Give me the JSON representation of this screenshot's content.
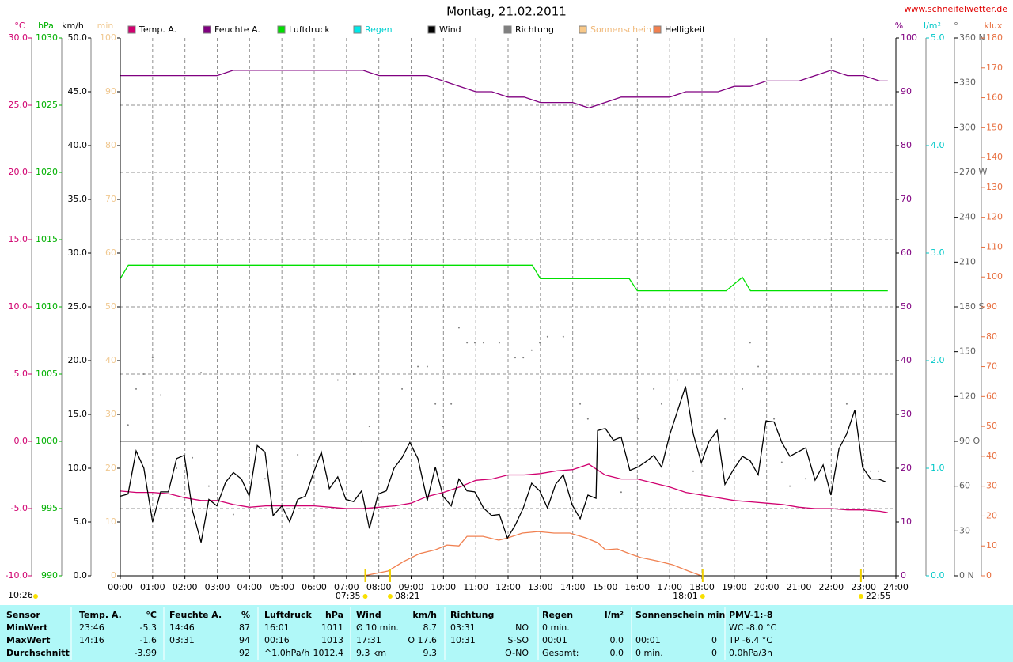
{
  "chart_data": {
    "type": "line",
    "title": "Montag, 21.02.2011",
    "source": "www.schneifelwetter.de",
    "xlim": [
      0,
      24
    ],
    "xticks": [
      {
        "value": 0,
        "label": "00:00"
      },
      {
        "value": 1,
        "label": "01:00"
      },
      {
        "value": 2,
        "label": "02:00"
      },
      {
        "value": 3,
        "label": "03:00"
      },
      {
        "value": 4,
        "label": "04:00"
      },
      {
        "value": 5,
        "label": "05:00"
      },
      {
        "value": 6,
        "label": "06:00"
      },
      {
        "value": 7,
        "label": "07:00"
      },
      {
        "value": 8,
        "label": "08:00"
      },
      {
        "value": 9,
        "label": "09:00"
      },
      {
        "value": 10,
        "label": "10:00"
      },
      {
        "value": 11,
        "label": "11:00"
      },
      {
        "value": 12,
        "label": "12:00"
      },
      {
        "value": 13,
        "label": "13:00"
      },
      {
        "value": 14,
        "label": "14:00"
      },
      {
        "value": 15,
        "label": "15:00"
      },
      {
        "value": 16,
        "label": "16:00"
      },
      {
        "value": 17,
        "label": "17:00"
      },
      {
        "value": 18,
        "label": "18:00"
      },
      {
        "value": 19,
        "label": "19:00"
      },
      {
        "value": 20,
        "label": "20:00"
      },
      {
        "value": 21,
        "label": "21:00"
      },
      {
        "value": 22,
        "label": "22:00"
      },
      {
        "value": 23,
        "label": "23:00"
      },
      {
        "value": 24,
        "label": "24:00"
      }
    ],
    "grid": true,
    "axes": [
      {
        "label": "°C",
        "color": "#d0006f",
        "lim": [
          -10,
          30
        ],
        "ticks": [
          {
            "value": 30,
            "label": "30.0"
          },
          {
            "value": 25,
            "label": "25.0"
          },
          {
            "value": 20,
            "label": "20.0"
          },
          {
            "value": 15,
            "label": "15.0"
          },
          {
            "value": 10,
            "label": "10.0"
          },
          {
            "value": 5,
            "label": "5.0"
          },
          {
            "value": 0,
            "label": "0.0"
          },
          {
            "value": -5,
            "label": "-5.0"
          },
          {
            "value": -10,
            "label": "-10.0"
          }
        ]
      },
      {
        "label": "hPa",
        "color": "#00b000",
        "lim": [
          990,
          1030
        ],
        "ticks": [
          1030,
          1025,
          1020,
          1015,
          1010,
          1005,
          1000,
          995,
          990
        ]
      },
      {
        "label": "km/h",
        "color": "#000000",
        "lim": [
          0,
          50
        ],
        "ticks": [
          {
            "value": 50,
            "label": "50.0"
          },
          {
            "value": 45,
            "label": "45.0"
          },
          {
            "value": 40,
            "label": "40.0"
          },
          {
            "value": 35,
            "label": "35.0"
          },
          {
            "value": 30,
            "label": "30.0"
          },
          {
            "value": 25,
            "label": "25.0"
          },
          {
            "value": 20,
            "label": "20.0"
          },
          {
            "value": 15,
            "label": "15.0"
          },
          {
            "value": 10,
            "label": "10.0"
          },
          {
            "value": 5,
            "label": "5.0"
          },
          {
            "value": 0,
            "label": "0.0"
          }
        ]
      },
      {
        "label": "min",
        "color": "#f0c890",
        "lim": [
          0,
          100
        ],
        "ticks": [
          100,
          90,
          80,
          70,
          60,
          50,
          40,
          30,
          20,
          10,
          0
        ]
      },
      {
        "label": "%",
        "color": "#800080",
        "lim": [
          0,
          100
        ],
        "ticks": [
          100,
          90,
          80,
          70,
          60,
          50,
          40,
          30,
          20,
          10,
          0
        ]
      },
      {
        "label": "l/m²",
        "color": "#00c8c8",
        "lim": [
          0,
          5
        ],
        "ticks": [
          {
            "value": 5,
            "label": "5.0"
          },
          {
            "value": 4,
            "label": "4.0"
          },
          {
            "value": 3,
            "label": "3.0"
          },
          {
            "value": 2,
            "label": "2.0"
          },
          {
            "value": 1,
            "label": "1.0"
          },
          {
            "value": 0,
            "label": "0.0"
          }
        ]
      },
      {
        "label": "°",
        "color": "#606060",
        "lim": [
          0,
          360
        ],
        "ticks": [
          {
            "value": 360,
            "label": "360 N"
          },
          330,
          300,
          {
            "value": 270,
            "label": "270 W"
          },
          240,
          210,
          {
            "value": 180,
            "label": "180 S"
          },
          150,
          120,
          {
            "value": 90,
            "label": "90 O"
          },
          60,
          30,
          {
            "value": 0,
            "label": "0 N"
          }
        ]
      },
      {
        "label": "klux",
        "color": "#e87040",
        "lim": [
          0,
          180
        ],
        "ticks": [
          180,
          170,
          160,
          150,
          140,
          130,
          120,
          110,
          100,
          90,
          80,
          70,
          60,
          50,
          40,
          30,
          20,
          10,
          0
        ]
      }
    ],
    "series": [
      {
        "name": "Temp. A.",
        "color": "#d0006f",
        "axis": "°C",
        "type": "line",
        "x": [
          0,
          0.5,
          1,
          1.5,
          2,
          2.5,
          3,
          3.5,
          4,
          4.5,
          5,
          5.5,
          6,
          6.5,
          7,
          7.5,
          8,
          8.5,
          9,
          9.5,
          10,
          10.5,
          11,
          11.5,
          12,
          12.5,
          13,
          13.5,
          14,
          14.5,
          15,
          15.5,
          16,
          16.5,
          17,
          17.5,
          18,
          18.5,
          19,
          19.5,
          20,
          20.5,
          21,
          21.5,
          22,
          22.5,
          23,
          23.5,
          23.75
        ],
        "values": [
          -3.7,
          -3.8,
          -3.8,
          -3.9,
          -4.2,
          -4.4,
          -4.4,
          -4.7,
          -4.9,
          -4.8,
          -4.8,
          -4.8,
          -4.8,
          -4.9,
          -5.0,
          -5.0,
          -4.9,
          -4.8,
          -4.6,
          -4.1,
          -3.8,
          -3.4,
          -2.9,
          -2.8,
          -2.5,
          -2.5,
          -2.4,
          -2.2,
          -2.1,
          -1.7,
          -2.5,
          -2.8,
          -2.8,
          -3.1,
          -3.4,
          -3.8,
          -4.0,
          -4.2,
          -4.4,
          -4.5,
          -4.6,
          -4.7,
          -4.9,
          -5.0,
          -5.0,
          -5.1,
          -5.1,
          -5.2,
          -5.3
        ]
      },
      {
        "name": "Feuchte A.",
        "color": "#800080",
        "axis": "%",
        "type": "line",
        "x": [
          0,
          0.5,
          1,
          1.5,
          2,
          2.5,
          3,
          3.5,
          4,
          4.5,
          5,
          5.5,
          6,
          6.5,
          7,
          7.5,
          8,
          8.5,
          9,
          9.5,
          10,
          10.5,
          11,
          11.5,
          12,
          12.5,
          13,
          13.5,
          14,
          14.5,
          15,
          15.5,
          16,
          16.5,
          17,
          17.5,
          18,
          18.5,
          19,
          19.5,
          20,
          20.5,
          21,
          21.5,
          22,
          22.5,
          23,
          23.5,
          23.75
        ],
        "values": [
          93,
          93,
          93,
          93,
          93,
          93,
          93,
          94,
          94,
          94,
          94,
          94,
          94,
          94,
          94,
          94,
          93,
          93,
          93,
          93,
          92,
          91,
          90,
          90,
          89,
          89,
          88,
          88,
          88,
          87,
          88,
          89,
          89,
          89,
          89,
          90,
          90,
          90,
          91,
          91,
          92,
          92,
          92,
          93,
          94,
          93,
          93,
          92,
          92
        ]
      },
      {
        "name": "Luftdruck",
        "color": "#00e000",
        "axis": "hPa",
        "type": "line",
        "x": [
          0,
          0.25,
          12.75,
          13,
          15.75,
          16,
          18.75,
          19.25,
          19.5,
          23.75
        ],
        "values": [
          1012.1,
          1013.1,
          1013.1,
          1012.1,
          1012.1,
          1011.2,
          1011.2,
          1012.2,
          1011.2,
          1011.2
        ]
      },
      {
        "name": "Regen",
        "color": "#00e8e8",
        "label_color": "#00d0d0",
        "axis": "l/m²",
        "type": "line",
        "x": [],
        "values": []
      },
      {
        "name": "Wind",
        "color": "#000000",
        "axis": "km/h",
        "type": "line",
        "x": [
          0,
          0.24,
          0.49,
          0.73,
          1.0,
          1.25,
          1.49,
          1.74,
          1.98,
          2.23,
          2.5,
          2.74,
          2.99,
          3.26,
          3.5,
          3.75,
          3.99,
          4.24,
          4.48,
          4.73,
          5.0,
          5.24,
          5.49,
          5.73,
          5.98,
          6.22,
          6.47,
          6.73,
          6.98,
          7.22,
          7.47,
          7.71,
          7.98,
          8.23,
          8.47,
          8.72,
          8.96,
          9.21,
          9.5,
          9.75,
          9.99,
          10.24,
          10.48,
          10.73,
          10.97,
          11.24,
          11.49,
          11.73,
          11.98,
          12.22,
          12.47,
          12.73,
          12.98,
          13.22,
          13.47,
          13.71,
          13.98,
          14.23,
          14.47,
          14.72,
          14.77,
          15.01,
          15.26,
          15.5,
          15.77,
          16.02,
          16.26,
          16.51,
          16.75,
          17.0,
          17.24,
          17.49,
          17.73,
          17.98,
          18.22,
          18.47,
          18.71,
          18.96,
          19.25,
          19.49,
          19.74,
          19.98,
          20.23,
          20.47,
          20.72,
          20.96,
          21.21,
          21.5,
          21.75,
          21.99,
          22.24,
          22.48,
          22.73,
          22.97,
          23.22,
          23.46,
          23.71
        ],
        "values": [
          7.4,
          7.6,
          11.6,
          10.0,
          5.0,
          7.8,
          7.8,
          10.9,
          11.2,
          6.1,
          3.1,
          7.1,
          6.5,
          8.7,
          9.6,
          9.0,
          7.4,
          12.1,
          11.5,
          5.6,
          6.5,
          5.0,
          7.1,
          7.4,
          9.6,
          11.5,
          8.1,
          9.2,
          7.1,
          6.9,
          7.9,
          4.4,
          7.6,
          7.9,
          10.0,
          11.0,
          12.4,
          10.9,
          7.0,
          10.1,
          7.4,
          6.5,
          9.0,
          7.9,
          7.8,
          6.3,
          5.6,
          5.7,
          3.5,
          4.7,
          6.3,
          8.6,
          7.9,
          6.3,
          8.5,
          9.4,
          6.6,
          5.3,
          7.5,
          7.2,
          13.5,
          13.7,
          12.6,
          12.9,
          9.8,
          10.1,
          10.6,
          11.2,
          10.1,
          13.1,
          15.3,
          17.6,
          13.2,
          10.5,
          12.5,
          13.5,
          8.5,
          9.8,
          11.1,
          10.7,
          9.4,
          14.4,
          14.3,
          12.4,
          11.1,
          11.5,
          11.9,
          8.9,
          10.3,
          7.5,
          11.8,
          13.2,
          15.4,
          10.1,
          9.0,
          9.0,
          8.7
        ]
      },
      {
        "name": "Richtung",
        "color": "#808080",
        "axis": "°",
        "type": "scatter",
        "x": [
          0.24,
          0.49,
          0.73,
          1.0,
          1.25,
          1.74,
          2.23,
          2.5,
          2.74,
          3.5,
          3.99,
          4.48,
          5.0,
          5.49,
          5.98,
          6.73,
          7.22,
          7.47,
          7.71,
          8.72,
          9.21,
          9.5,
          9.75,
          9.99,
          10.24,
          10.48,
          10.73,
          10.97,
          11.24,
          11.73,
          12.22,
          12.47,
          12.73,
          12.98,
          13.22,
          13.71,
          14.23,
          14.47,
          15.5,
          16.02,
          16.51,
          16.75,
          17.0,
          17.24,
          17.73,
          18.71,
          19.25,
          19.49,
          19.74,
          20.23,
          20.47,
          20.72,
          21.21,
          21.5,
          22.48,
          23.22,
          23.46
        ],
        "values": [
          101,
          125,
          135,
          146,
          121,
          72,
          79,
          136,
          60,
          41,
          79,
          65,
          60,
          81,
          66,
          131,
          135,
          90,
          100,
          125,
          140,
          140,
          115,
          100,
          115,
          166,
          156,
          156,
          156,
          156,
          146,
          146,
          151,
          156,
          160,
          160,
          115,
          105,
          56,
          105,
          125,
          115,
          131,
          131,
          70,
          105,
          125,
          156,
          140,
          105,
          76,
          60,
          65,
          65,
          115,
          70,
          70
        ]
      },
      {
        "name": "Sonnenschein",
        "color": "#f8c888",
        "label_color": "#f0b878",
        "axis": "min",
        "type": "line",
        "x": [],
        "values": []
      },
      {
        "name": "Helligkeit",
        "color": "#f08050",
        "axis": "klux",
        "type": "line",
        "x": [
          7.54,
          8.28,
          8.77,
          9.26,
          9.75,
          10.11,
          10.48,
          10.73,
          11.22,
          11.71,
          12.0,
          12.44,
          12.93,
          13.42,
          13.91,
          14.4,
          14.77,
          15.01,
          15.38,
          15.75,
          16.11,
          16.6,
          17.09,
          17.58,
          17.98
        ],
        "values": [
          0,
          1.6,
          4.8,
          7.4,
          8.7,
          10.3,
          10.0,
          13.2,
          13.2,
          11.9,
          12.7,
          14.3,
          14.8,
          14.3,
          14.3,
          12.7,
          11.1,
          8.7,
          9.0,
          7.4,
          6.1,
          5.0,
          3.7,
          1.6,
          0
        ]
      }
    ],
    "markers": [
      {
        "label": "07:35",
        "x": 7.58
      },
      {
        "label": "08:21",
        "x": 8.35
      },
      {
        "label": "18:01",
        "x": 18.02
      },
      {
        "label": "22:55",
        "x": 22.92
      }
    ],
    "moon_label": "10:26"
  },
  "table": {
    "header": [
      "Sensor",
      "Temp. A.",
      "°C",
      "Feuchte A.",
      "%",
      "Luftdruck",
      "hPa",
      "Wind",
      "km/h",
      "Richtung",
      null,
      "Regen",
      "l/m²",
      "Sonnenschein min",
      null,
      "PMV-1:-8"
    ],
    "rows": [
      [
        "MinWert",
        "23:46",
        "-5.3",
        "14:46",
        "87",
        "16:01",
        "1011",
        "Ø 10 min.",
        "8.7",
        "03:31",
        "NO",
        "0 min.",
        null,
        null,
        null,
        "WC -8.0 °C"
      ],
      [
        "MaxWert",
        "14:16",
        "-1.6",
        "03:31",
        "94",
        "00:16",
        "1013",
        "17:31",
        "O 17.6",
        "10:31",
        "S-SO",
        "00:01",
        "0.0",
        "00:01",
        "0",
        "TP -6.4 °C"
      ],
      [
        "Durchschnitt",
        null,
        "-3.99",
        null,
        "92",
        "^1.0hPa/h",
        "1012.4",
        "9,3 km",
        "9.3",
        null,
        "O-NO",
        "Gesamt:",
        "0.0",
        "0 min.",
        "0",
        "0.0hPa/3h"
      ]
    ]
  }
}
